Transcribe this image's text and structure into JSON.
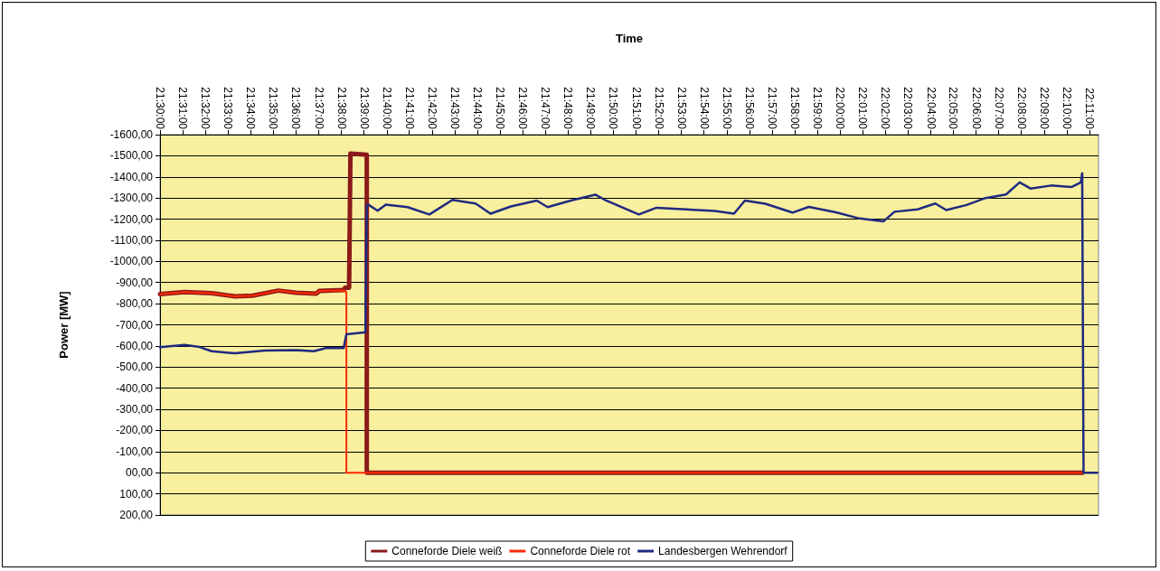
{
  "chart_data": {
    "type": "line",
    "xlabel": "Time",
    "ylabel": "Power [MW]",
    "xlim": [
      21.5,
      22.19
    ],
    "ylim": [
      200,
      -1600
    ],
    "xticks": [
      {
        "value": 21.5,
        "label": "21:30:00"
      },
      {
        "value": 21.5167,
        "label": "21:31:00"
      },
      {
        "value": 21.5333,
        "label": "21:32:00"
      },
      {
        "value": 21.55,
        "label": "21:33:00"
      },
      {
        "value": 21.5667,
        "label": "21:34:00"
      },
      {
        "value": 21.5833,
        "label": "21:35:00"
      },
      {
        "value": 21.6,
        "label": "21:36:00"
      },
      {
        "value": 21.6167,
        "label": "21:37:00"
      },
      {
        "value": 21.6333,
        "label": "21:38:00"
      },
      {
        "value": 21.65,
        "label": "21:39:00"
      },
      {
        "value": 21.6667,
        "label": "21:40:00"
      },
      {
        "value": 21.6833,
        "label": "21:41:00"
      },
      {
        "value": 21.7,
        "label": "21:42:00"
      },
      {
        "value": 21.7167,
        "label": "21:43:00"
      },
      {
        "value": 21.7333,
        "label": "21:44:00"
      },
      {
        "value": 21.75,
        "label": "21:45:00"
      },
      {
        "value": 21.7667,
        "label": "21:46:00"
      },
      {
        "value": 21.7833,
        "label": "21:47:00"
      },
      {
        "value": 21.8,
        "label": "21:48:00"
      },
      {
        "value": 21.8167,
        "label": "21:49:00"
      },
      {
        "value": 21.8333,
        "label": "21:50:00"
      },
      {
        "value": 21.85,
        "label": "21:51:00"
      },
      {
        "value": 21.8667,
        "label": "21:52:00"
      },
      {
        "value": 21.8833,
        "label": "21:53:00"
      },
      {
        "value": 21.9,
        "label": "21:54:00"
      },
      {
        "value": 21.9167,
        "label": "21:55:00"
      },
      {
        "value": 21.9333,
        "label": "21:56:00"
      },
      {
        "value": 21.95,
        "label": "21:57:00"
      },
      {
        "value": 21.9667,
        "label": "21:58:00"
      },
      {
        "value": 21.9833,
        "label": "21:59:00"
      },
      {
        "value": 22.0,
        "label": "22:00:00"
      },
      {
        "value": 22.0167,
        "label": "22:01:00"
      },
      {
        "value": 22.0333,
        "label": "22:02:00"
      },
      {
        "value": 22.05,
        "label": "22:03:00"
      },
      {
        "value": 22.0667,
        "label": "22:04:00"
      },
      {
        "value": 22.0833,
        "label": "22:05:00"
      },
      {
        "value": 22.1,
        "label": "22:06:00"
      },
      {
        "value": 22.1167,
        "label": "22:07:00"
      },
      {
        "value": 22.1333,
        "label": "22:08:00"
      },
      {
        "value": 22.15,
        "label": "22:09:00"
      },
      {
        "value": 22.1667,
        "label": "22:10:00"
      },
      {
        "value": 22.1833,
        "label": "22:11:00"
      }
    ],
    "yticks": [
      {
        "value": 200,
        "label": "200,00"
      },
      {
        "value": 100,
        "label": "100,00"
      },
      {
        "value": 0,
        "label": "00,00"
      },
      {
        "value": -100,
        "label": "-100,00"
      },
      {
        "value": -200,
        "label": "-200,00"
      },
      {
        "value": -300,
        "label": "-300,00"
      },
      {
        "value": -400,
        "label": "-400,00"
      },
      {
        "value": -500,
        "label": "-500,00"
      },
      {
        "value": -600,
        "label": "-600,00"
      },
      {
        "value": -700,
        "label": "-700,00"
      },
      {
        "value": -800,
        "label": "-800,00"
      },
      {
        "value": -900,
        "label": "-900,00"
      },
      {
        "value": -1000,
        "label": "-1000,00"
      },
      {
        "value": -1100,
        "label": "-1100,00"
      },
      {
        "value": -1200,
        "label": "-1200,00"
      },
      {
        "value": -1300,
        "label": "-1300,00"
      },
      {
        "value": -1400,
        "label": "-1400,00"
      },
      {
        "value": -1500,
        "label": "-1500,00"
      },
      {
        "value": -1600,
        "label": "-1600,00"
      }
    ],
    "grid": "y",
    "legend": "bottom",
    "marker": "none",
    "line_style": "solid",
    "series": [
      {
        "name": "Conneforde Diele weiß",
        "color": "#8b1a1a",
        "x": [
          21.5,
          21.518,
          21.538,
          21.555,
          21.568,
          21.587,
          21.6,
          21.615,
          21.617,
          21.635,
          21.636,
          21.639,
          21.64,
          21.652,
          21.652,
          22.178
        ],
        "values": [
          -845,
          -855,
          -850,
          -835,
          -838,
          -862,
          -852,
          -848,
          -860,
          -865,
          -875,
          -875,
          -1510,
          -1505,
          0,
          0
        ]
      },
      {
        "name": "Conneforde Diele rot",
        "color": "#ff2a00",
        "x": [
          21.5,
          21.518,
          21.538,
          21.555,
          21.568,
          21.587,
          21.6,
          21.615,
          21.617,
          21.635,
          21.637,
          21.637,
          22.178
        ],
        "values": [
          -845,
          -855,
          -850,
          -835,
          -838,
          -862,
          -852,
          -848,
          -860,
          -862,
          -855,
          0,
          0
        ]
      },
      {
        "name": "Landesbergen Wehrendorf",
        "color": "#1f2a80",
        "x": [
          21.5,
          21.518,
          21.529,
          21.538,
          21.555,
          21.577,
          21.6,
          21.613,
          21.622,
          21.635,
          21.637,
          21.651,
          21.652,
          21.653,
          21.66,
          21.666,
          21.682,
          21.698,
          21.715,
          21.732,
          21.743,
          21.758,
          21.777,
          21.785,
          21.802,
          21.82,
          21.828,
          21.852,
          21.865,
          21.887,
          21.908,
          21.922,
          21.93,
          21.945,
          21.965,
          21.977,
          21.997,
          22.013,
          22.032,
          22.04,
          22.057,
          22.07,
          22.078,
          22.093,
          22.107,
          22.122,
          22.132,
          22.14,
          22.155,
          22.17,
          22.177,
          22.178,
          22.179,
          22.189
        ],
        "values": [
          -594,
          -605,
          -595,
          -575,
          -565,
          -578,
          -580,
          -575,
          -590,
          -590,
          -655,
          -665,
          -1265,
          -1269,
          -1240,
          -1269,
          -1257,
          -1222,
          -1291,
          -1274,
          -1226,
          -1260,
          -1288,
          -1257,
          -1288,
          -1316,
          -1288,
          -1222,
          -1254,
          -1246,
          -1239,
          -1226,
          -1288,
          -1273,
          -1231,
          -1258,
          -1232,
          -1205,
          -1190,
          -1235,
          -1246,
          -1274,
          -1243,
          -1267,
          -1300,
          -1317,
          -1374,
          -1345,
          -1359,
          -1352,
          -1374,
          -1417,
          0,
          0
        ]
      }
    ]
  }
}
